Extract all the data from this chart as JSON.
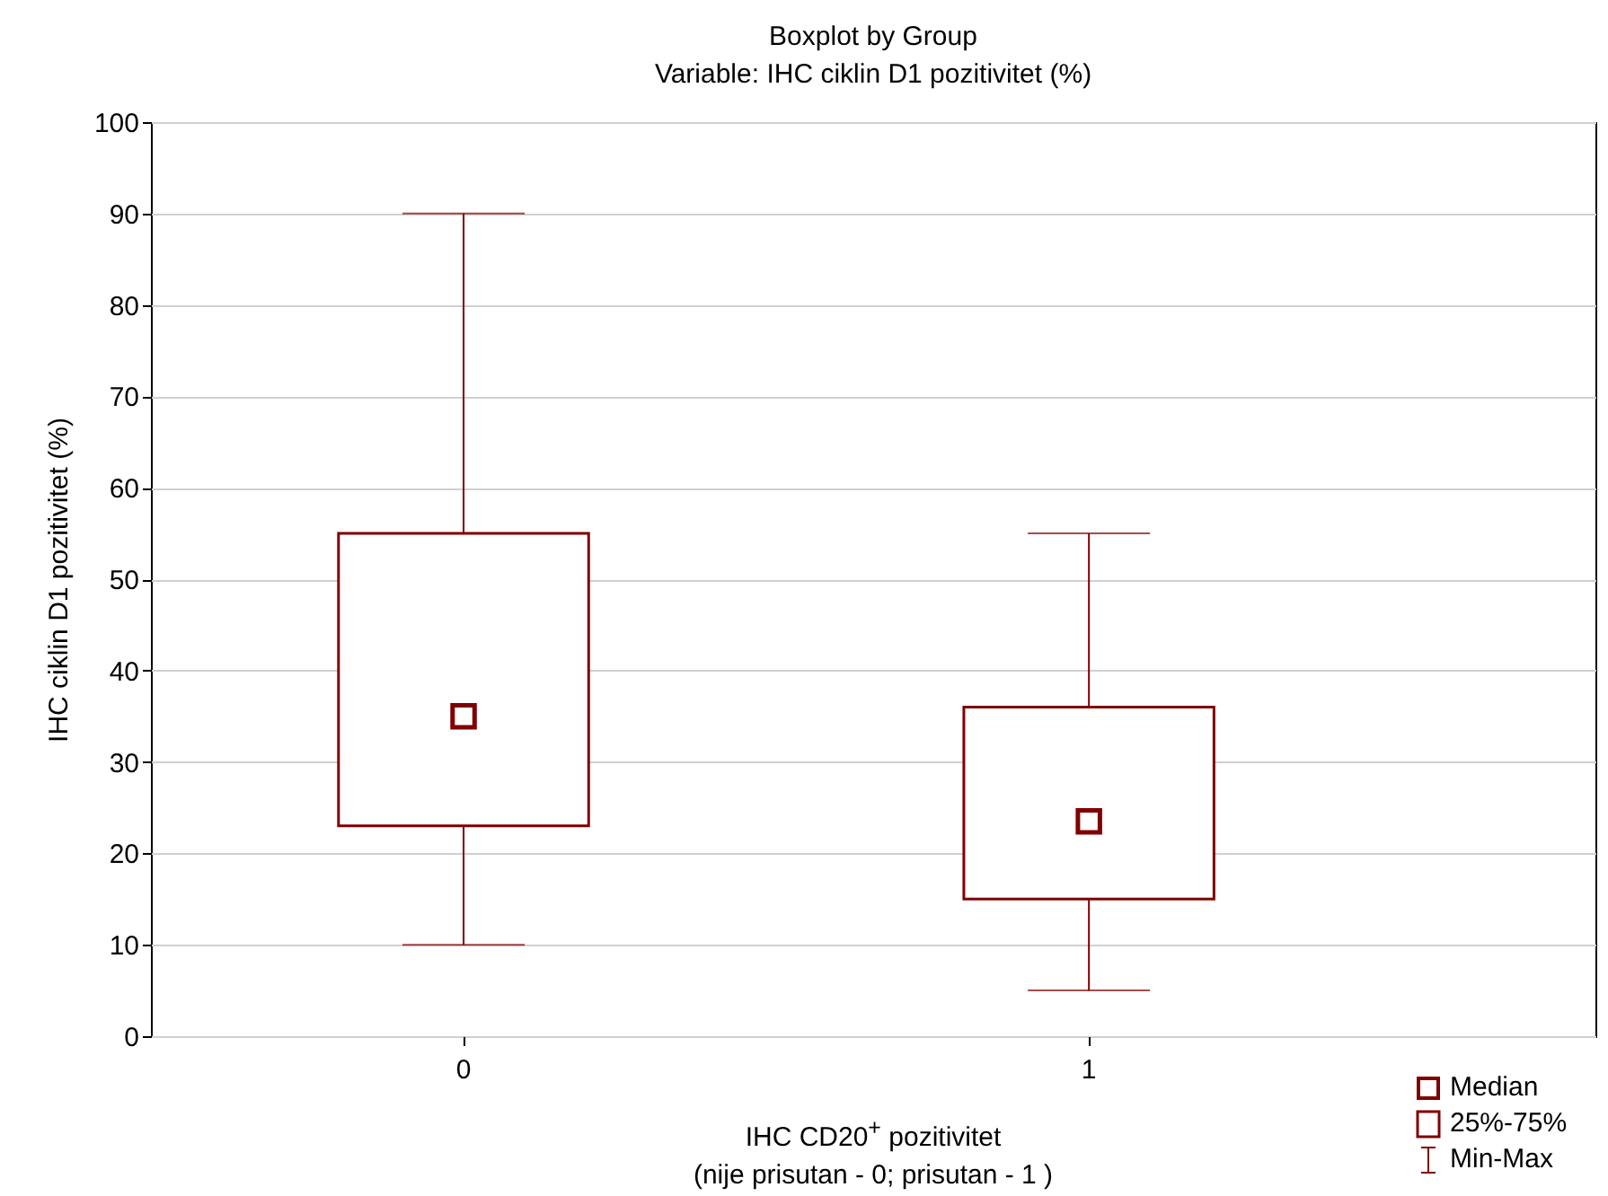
{
  "chart_data": {
    "type": "box",
    "title": "Boxplot by Group",
    "subtitle": "Variable: IHC ciklin D1 pozitivitet (%)",
    "xlabel": "IHC CD20$^{+}$ pozitivitet\n(nije prisutan - 0; prisutan - 1 )",
    "ylabel": "IHC ciklin D1 pozitivitet (%)",
    "categories": [
      "0",
      "1"
    ],
    "series": [
      {
        "color": "#800000",
        "boxes": [
          {
            "low": 10,
            "q1": 23,
            "median": 35,
            "q3": 55,
            "high": 90
          },
          {
            "low": 5,
            "q1": 15,
            "median": 23.5,
            "q3": 36,
            "high": 55
          }
        ]
      }
    ],
    "ylim": [
      0,
      100
    ],
    "yticks": [
      0,
      10,
      20,
      30,
      40,
      50,
      60,
      70,
      80,
      90,
      100
    ],
    "grid": "y",
    "marker": "square",
    "annotations": [
      "Median",
      "25%-75%",
      "Min-Max"
    ]
  }
}
